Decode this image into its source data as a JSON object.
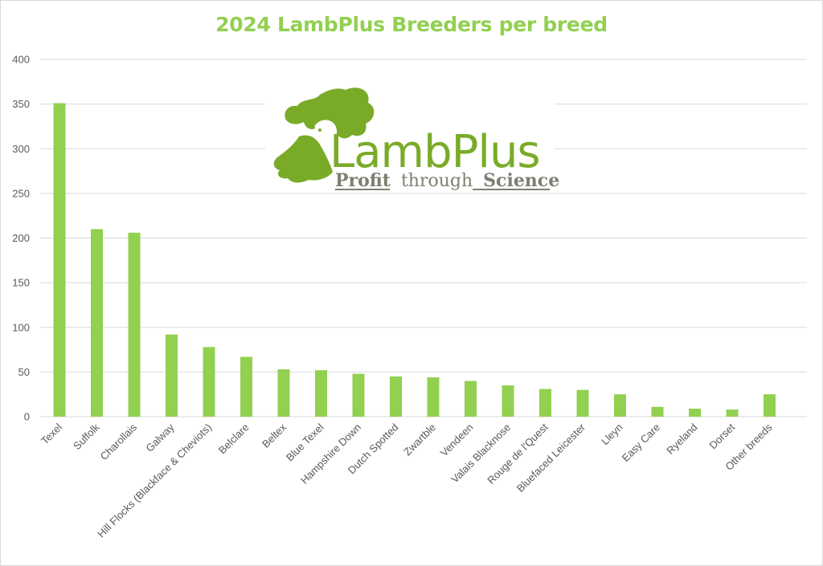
{
  "chart_data": {
    "type": "bar",
    "title": "2024 LambPlus Breeders per breed",
    "xlabel": "",
    "ylabel": "",
    "ylim": [
      0,
      400
    ],
    "yticks": [
      0,
      50,
      100,
      150,
      200,
      250,
      300,
      350,
      400
    ],
    "grid": true,
    "legend": "none",
    "categories": [
      "Texel",
      "Suffolk",
      "Charollais",
      "Galway",
      "Hill Flocks (Blackface & Cheviots)",
      "Belclare",
      "Beltex",
      "Blue Texel",
      "Hampshire Down",
      "Dutch Spotted",
      "Zwartble",
      "Vendeen",
      "Valais Blacknose",
      "Rouge de l'Quest",
      "Bluefaced Leicester",
      "Lleyn",
      "Easy Care",
      "Ryeland",
      "Dorset",
      "Other breeds"
    ],
    "values": [
      351,
      210,
      206,
      92,
      78,
      67,
      53,
      52,
      48,
      45,
      44,
      40,
      35,
      31,
      30,
      25,
      11,
      9,
      8,
      25
    ]
  },
  "logo": {
    "brand": "LambPlus",
    "tagline_part1": "Profit",
    "tagline_part2": "through",
    "tagline_part3": "Science"
  },
  "colors": {
    "bar": "#92d050",
    "title": "#92d050",
    "grid": "#d9d9d9",
    "axis_text": "#595959",
    "logo_green": "#7aab28",
    "logo_grey": "#7f7f70"
  }
}
